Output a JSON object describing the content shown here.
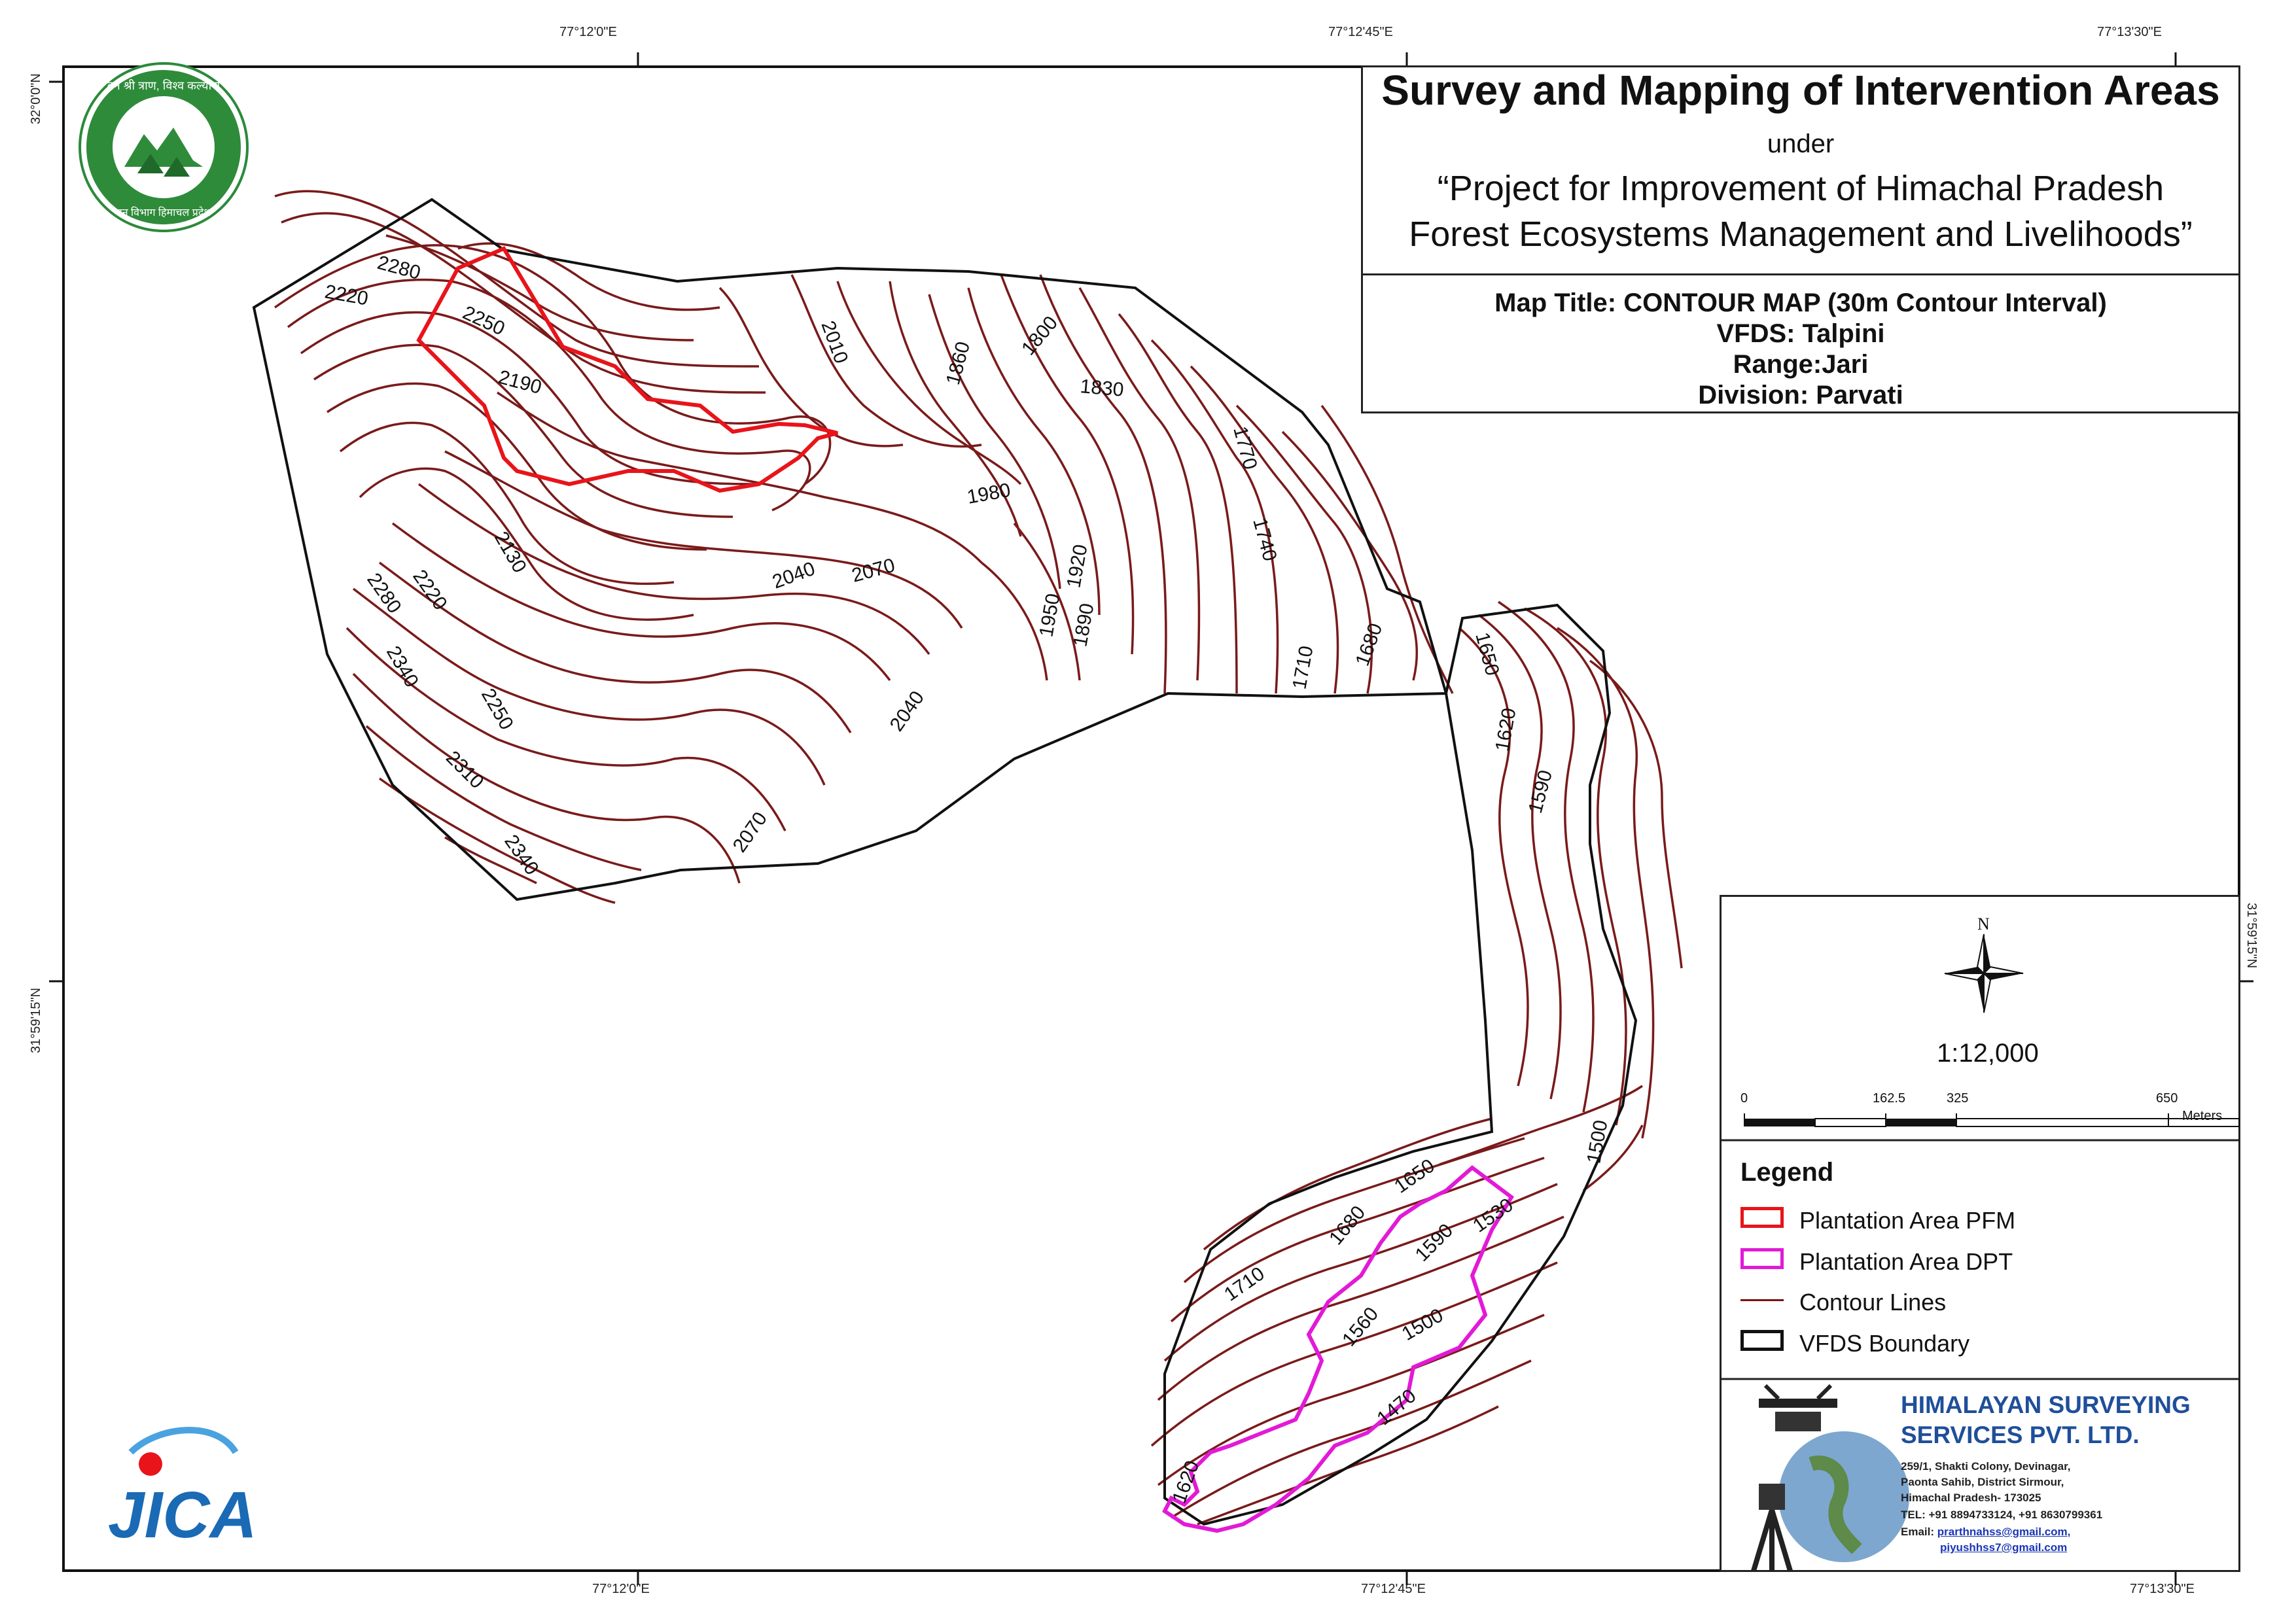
{
  "title": {
    "main": "Survey and Mapping of Intervention Areas",
    "under": "under",
    "project_line1": "“Project for Improvement of Himachal Pradesh",
    "project_line2": "Forest Ecosystems Management and Livelihoods”"
  },
  "map_info": {
    "map_title": "Map Title: CONTOUR MAP (30m Contour Interval)",
    "vfds": "VFDS: Talpini",
    "range": "Range:Jari",
    "division": "Division: Parvati"
  },
  "graticule": {
    "top": [
      "77°12'0\"E",
      "77°12'45\"E",
      "77°13'30\"E"
    ],
    "bottom": [
      "77°12'0\"E",
      "77°12'45\"E",
      "77°13'30\"E"
    ],
    "left": [
      "32°0'0\"N",
      "31°59'15\"N"
    ],
    "right": [
      "31°59'15\"N"
    ]
  },
  "north_arrow": {
    "label": "N"
  },
  "scale": {
    "ratio": "1:12,000",
    "ticks": [
      "0",
      "162.5",
      "325",
      "650"
    ],
    "unit": "Meters"
  },
  "legend": {
    "title": "Legend",
    "items": [
      {
        "label": "Plantation Area PFM",
        "color": "#e8141a"
      },
      {
        "label": "Plantation Area DPT",
        "color": "#e21ad6"
      },
      {
        "label": "Contour Lines",
        "color": "#7a1010"
      },
      {
        "label": "VFDS Boundary",
        "color": "#111111"
      }
    ]
  },
  "contour_labels": {
    "north": [
      "2280",
      "2250",
      "2220",
      "2190",
      "2010",
      "1860",
      "1800",
      "1830",
      "1770",
      "1740",
      "1980",
      "2130",
      "2040",
      "2070",
      "1920",
      "1950",
      "1890",
      "2220",
      "2280",
      "2340",
      "2250",
      "2310",
      "2340",
      "2040",
      "2070",
      "1710",
      "1680"
    ],
    "east": [
      "1650",
      "1620",
      "1590",
      "1500"
    ],
    "south": [
      "1650",
      "1530",
      "1680",
      "1590",
      "1710",
      "1560",
      "1500",
      "1470",
      "1620"
    ]
  },
  "company": {
    "name_line1": "HIMALAYAN SURVEYING",
    "name_line2": "SERVICES PVT. LTD.",
    "address1": "259/1, Shakti Colony, Devinagar,",
    "address2": "Paonta Sahib, District Sirmour,",
    "address3": "Himachal Pradesh- 173025",
    "tel": "TEL: +91 8894733124, +91 8630799361",
    "email_label": "Email:",
    "email1": "prarthnahss@gmail.com,",
    "email2": "piyushhss7@gmail.com"
  },
  "logos": {
    "forest_dept": "वन विभाग हिमाचल प्रदेश",
    "forest_motto": "वन श्री त्राण, विश्व कल्याण",
    "jica": "JICA"
  }
}
